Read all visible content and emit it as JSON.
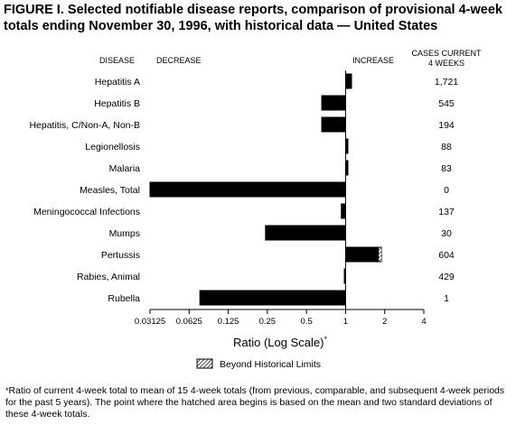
{
  "title": "FIGURE I. Selected notifiable disease reports, comparison of provisional 4-week totals ending November 30, 1996, with historical data — United States",
  "headers": {
    "disease": "DISEASE",
    "decrease": "DECREASE",
    "increase": "INCREASE",
    "cases_line1": "CASES CURRENT",
    "cases_line2": "4 WEEKS"
  },
  "legend_label": "Beyond Historical Limits",
  "footnote": "Ratio of current 4-week total to mean of 15 4-week totals (from previous, comparable, and subsequent 4-week periods for the past 5 years). The point where the hatched area begins is based on the mean and two standard deviations of these 4-week totals.",
  "footnote_marker": "*",
  "chart_data": {
    "type": "bar",
    "orientation": "horizontal",
    "scale": "log2",
    "baseline": 1,
    "xlabel": "Ratio (Log Scale)",
    "xlabel_marker": "*",
    "xlim": [
      0.03125,
      4
    ],
    "xticks": [
      0.03125,
      0.0625,
      0.125,
      0.25,
      0.5,
      1,
      2,
      4
    ],
    "xtick_labels": [
      "0.03125",
      "0.0625",
      "0.125",
      "0.25",
      "0.5",
      "1",
      "2",
      "4"
    ],
    "categories": [
      "Hepatitis A",
      "Hepatitis B",
      "Hepatitis, C/Non-A, Non-B",
      "Legionellosis",
      "Malaria",
      "Measles, Total",
      "Meningococcal Infections",
      "Mumps",
      "Pertussis",
      "Rabies, Animal",
      "Rubella"
    ],
    "values": [
      1.12,
      0.65,
      0.65,
      1.05,
      1.05,
      0.031,
      0.92,
      0.24,
      1.9,
      0.97,
      0.075
    ],
    "beyond_limits_from": [
      null,
      null,
      null,
      null,
      null,
      null,
      null,
      null,
      1.8,
      null,
      null
    ],
    "cases_current_4_weeks": [
      "1,721",
      "545",
      "194",
      "88",
      "83",
      "0",
      "137",
      "30",
      "604",
      "429",
      "1"
    ],
    "colors": {
      "bar": "#000000",
      "hatch": "#000000",
      "background": "#ffffff"
    }
  }
}
